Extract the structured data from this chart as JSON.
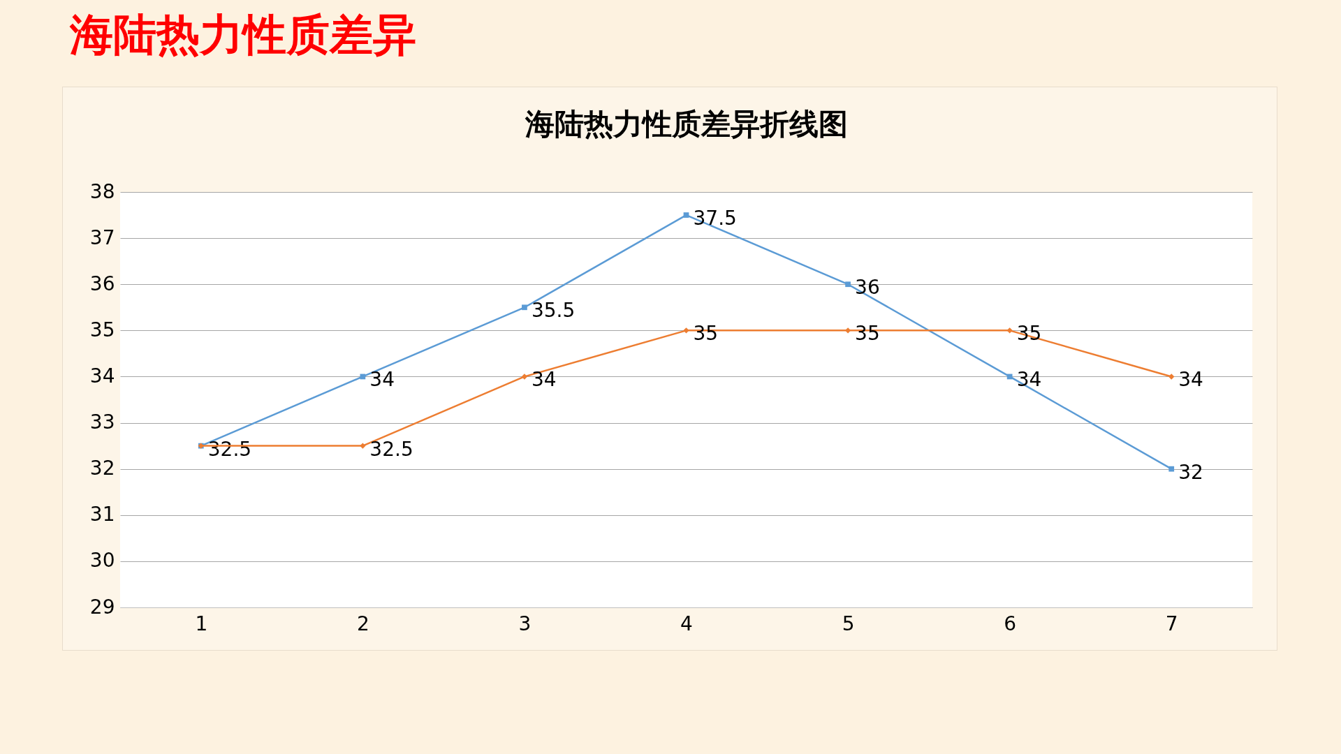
{
  "chart_data": {
    "type": "line",
    "title": "海陆热力性质差异",
    "subtitle": "海陆热力性质差异折线图",
    "categories": [
      "1",
      "2",
      "3",
      "4",
      "5",
      "6",
      "7"
    ],
    "series": [
      {
        "color": "#5b9bd5",
        "marker": "square",
        "values": [
          32.5,
          34,
          35.5,
          37.5,
          36,
          34,
          32
        ]
      },
      {
        "color": "#ed7d31",
        "marker": "diamond",
        "values": [
          32.5,
          32.5,
          34,
          35,
          35,
          35,
          34
        ],
        "value_labels": [
          null,
          "32.5",
          "34",
          "35",
          "35",
          "35",
          "34"
        ]
      }
    ],
    "ylim": [
      29,
      38
    ],
    "yticks": [
      29,
      30,
      31,
      32,
      33,
      34,
      35,
      36,
      37,
      38
    ],
    "grid": "y",
    "data_labels": true
  }
}
